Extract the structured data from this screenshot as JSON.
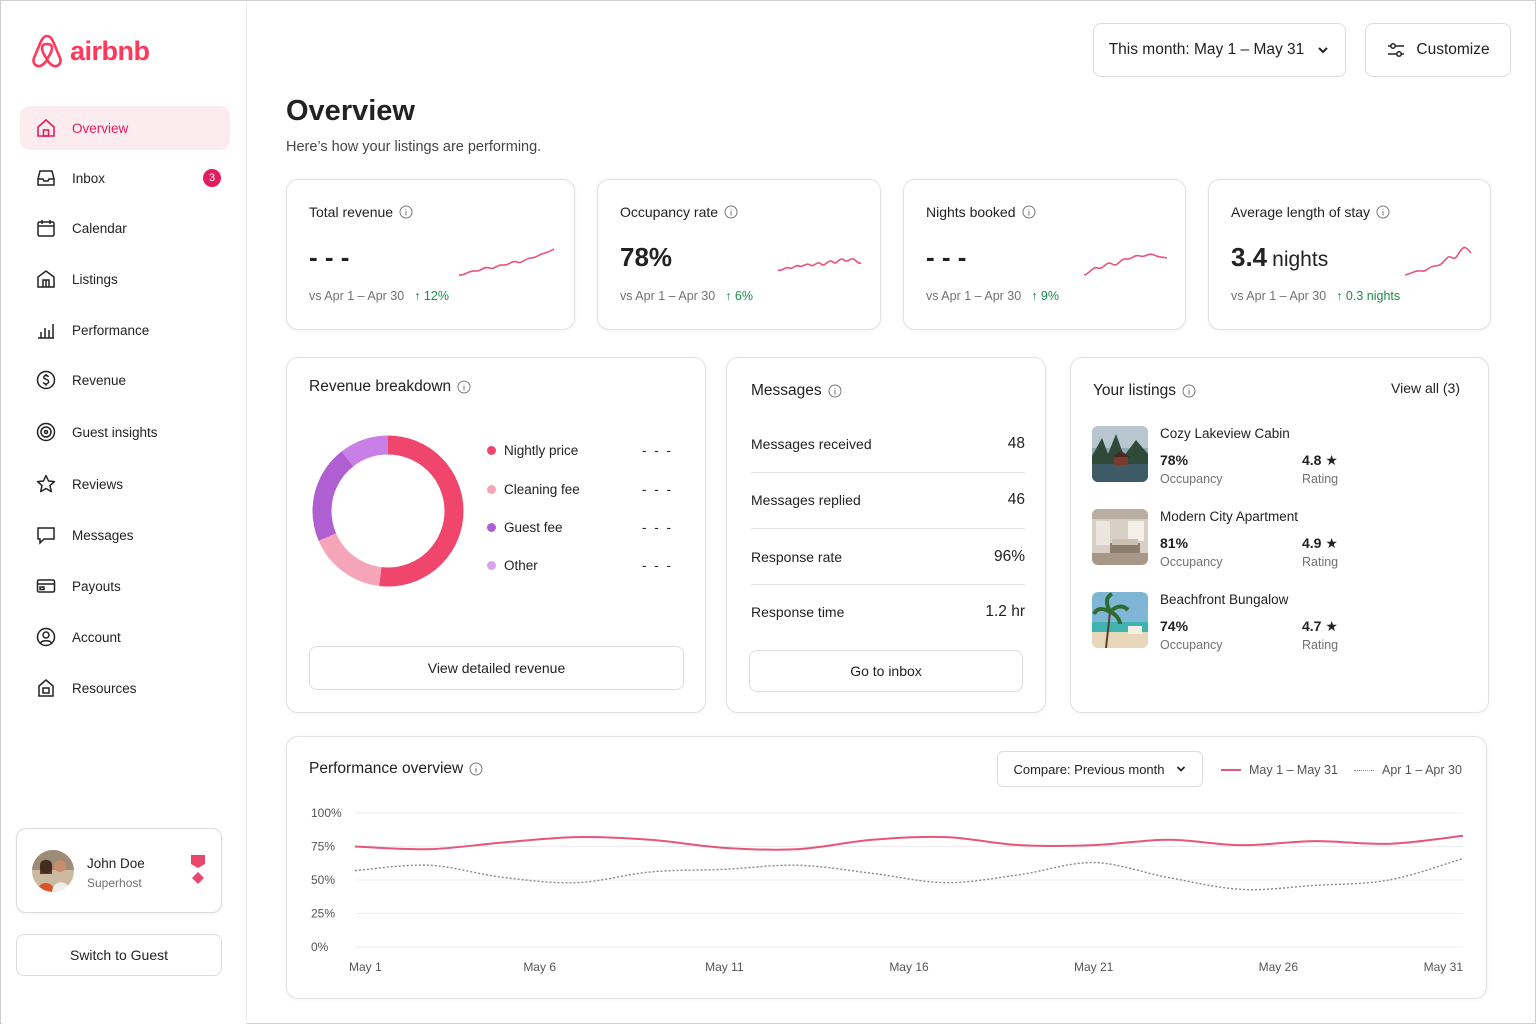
{
  "brand": {
    "name": "airbnb",
    "accent": "#ff385c",
    "accent_dark": "#e31c5f",
    "positive": "#1a8a4a"
  },
  "sidebar": {
    "items": [
      {
        "label": "Overview",
        "icon": "home-icon",
        "active": true
      },
      {
        "label": "Inbox",
        "icon": "inbox-icon",
        "badge": "3"
      },
      {
        "label": "Calendar",
        "icon": "calendar-icon"
      },
      {
        "label": "Listings",
        "icon": "building-icon"
      },
      {
        "label": "Performance",
        "icon": "bar-chart-icon"
      },
      {
        "label": "Revenue",
        "icon": "dollar-icon"
      },
      {
        "label": "Guest insights",
        "icon": "target-icon"
      },
      {
        "label": "Reviews",
        "icon": "star-icon"
      },
      {
        "label": "Messages",
        "icon": "message-icon"
      },
      {
        "label": "Payouts",
        "icon": "payout-card-icon"
      },
      {
        "label": "Account",
        "icon": "account-icon"
      },
      {
        "label": "Resources",
        "icon": "resources-icon"
      }
    ],
    "user": {
      "name": "John Doe",
      "role": "Superhost"
    },
    "switch_label": "Switch to Guest"
  },
  "header": {
    "date_range": "This month: May 1 – May 31",
    "customize": "Customize",
    "title": "Overview",
    "subtitle": "Here’s how your listings are performing."
  },
  "kpis": [
    {
      "label": "Total revenue",
      "value": "- - -",
      "compare": "vs Apr 1 – Apr 30",
      "delta": "↑ 12%"
    },
    {
      "label": "Occupancy rate",
      "value": "78%",
      "compare": "vs Apr 1 – Apr 30",
      "delta": "↑ 6%"
    },
    {
      "label": "Nights booked",
      "value": "- - -",
      "compare": "vs Apr 1 – Apr 30",
      "delta": "↑ 9%"
    },
    {
      "label": "Average length of stay",
      "value": "3.4",
      "unit": "nights",
      "compare": "vs Apr 1 – Apr 30",
      "delta": "↑ 0.3 nights"
    }
  ],
  "revenue": {
    "title": "Revenue breakdown",
    "legend": [
      {
        "label": "Nightly price",
        "value": "- - -",
        "color": "#f0456d"
      },
      {
        "label": "Cleaning fee",
        "value": "- - -",
        "color": "#f6a4b8"
      },
      {
        "label": "Guest fee",
        "value": "- - -",
        "color": "#b05fd3"
      },
      {
        "label": "Other",
        "value": "- - -",
        "color": "#d9a3ec"
      }
    ],
    "button": "View detailed revenue"
  },
  "messages": {
    "title": "Messages",
    "rows": [
      {
        "label": "Messages received",
        "value": "48"
      },
      {
        "label": "Messages replied",
        "value": "46"
      },
      {
        "label": "Response rate",
        "value": "96%"
      },
      {
        "label": "Response time",
        "value": "1.2 hr"
      }
    ],
    "button": "Go to inbox"
  },
  "listings": {
    "title": "Your listings",
    "view_all": "View all (3)",
    "items": [
      {
        "name": "Cozy Lakeview Cabin",
        "occupancy": "78%",
        "occupancy_label": "Occupancy",
        "rating": "4.8 ★",
        "rating_label": "Rating"
      },
      {
        "name": "Modern City Apartment",
        "occupancy": "81%",
        "occupancy_label": "Occupancy",
        "rating": "4.9 ★",
        "rating_label": "Rating"
      },
      {
        "name": "Beachfront Bungalow",
        "occupancy": "74%",
        "occupancy_label": "Occupancy",
        "rating": "4.7 ★",
        "rating_label": "Rating"
      }
    ]
  },
  "performance": {
    "title": "Performance overview",
    "compare": "Compare: Previous month",
    "legend_current": "May 1 – May 31",
    "legend_previous": "Apr 1 – Apr 30",
    "y_ticks": [
      "100%",
      "75%",
      "50%",
      "25%",
      "0%"
    ],
    "x_ticks": [
      "May 1",
      "May 6",
      "May 11",
      "May 16",
      "May 21",
      "May 26",
      "May 31"
    ]
  },
  "chart_data": {
    "type": "line",
    "title": "Performance overview",
    "xlabel": "",
    "ylabel": "",
    "ylim": [
      0,
      100
    ],
    "x": [
      1,
      3,
      5,
      7,
      9,
      11,
      13,
      15,
      17,
      19,
      21,
      23,
      25,
      27,
      29,
      31
    ],
    "x_tick_labels": [
      "May 1",
      "May 6",
      "May 11",
      "May 16",
      "May 21",
      "May 26",
      "May 31"
    ],
    "x_tick_values": [
      1,
      6,
      11,
      16,
      21,
      26,
      31
    ],
    "series": [
      {
        "name": "May 1 – May 31",
        "color": "#e8557a",
        "style": "solid",
        "values": [
          75,
          73,
          78,
          82,
          80,
          74,
          73,
          80,
          82,
          76,
          76,
          80,
          76,
          79,
          77,
          83
        ]
      },
      {
        "name": "Apr 1 – Apr 30",
        "color": "#888888",
        "style": "dotted",
        "values": [
          57,
          61,
          52,
          48,
          56,
          58,
          61,
          55,
          48,
          54,
          63,
          52,
          43,
          46,
          50,
          66
        ]
      }
    ],
    "grid": true
  }
}
